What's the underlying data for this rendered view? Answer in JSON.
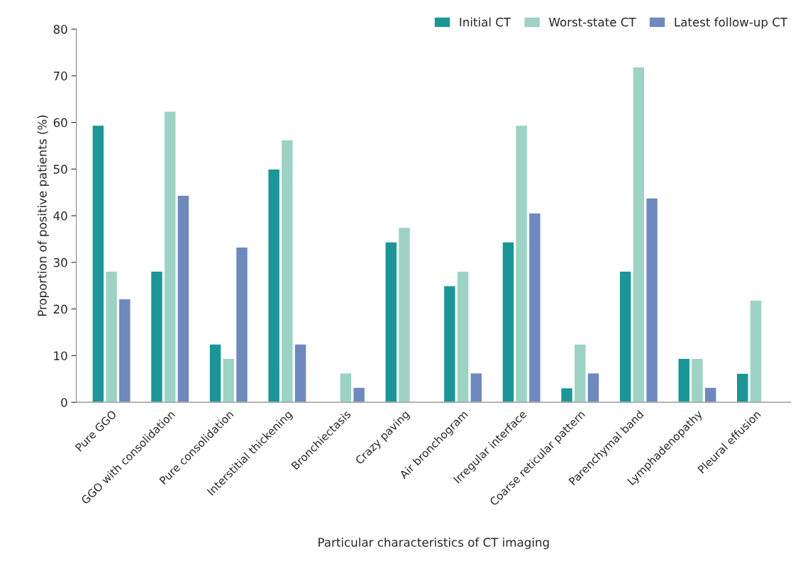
{
  "chart_data": {
    "type": "bar",
    "xlabel": "Particular characteristics of CT imaging",
    "ylabel": "Proportion of positive patients (%)",
    "categories": [
      "Pure GGO",
      "GGO with consolidation",
      "Pure consolidation",
      "Interstitial thickening",
      "Bronchiectasis",
      "Crazy paving",
      "Air bronchogram",
      "Irregular interface",
      "Coarse reticular pattern",
      "Parenchymal band",
      "Lymphadenopathy",
      "Pleural effusion"
    ],
    "series": [
      {
        "name": "Initial CT",
        "color": "#1a9699",
        "values": [
          59.4,
          28.1,
          12.5,
          50.0,
          null,
          34.4,
          25.0,
          34.4,
          3.1,
          28.1,
          9.4,
          6.2
        ]
      },
      {
        "name": "Worst-state CT",
        "color": "#9dd3c4",
        "values": [
          28.1,
          62.4,
          9.4,
          56.3,
          6.3,
          37.5,
          28.1,
          59.4,
          12.5,
          71.9,
          9.4,
          21.9
        ]
      },
      {
        "name": "Latest follow-up CT",
        "color": "#6d89c0",
        "values": [
          22.2,
          44.4,
          33.3,
          12.5,
          3.2,
          null,
          6.3,
          40.6,
          6.3,
          43.8,
          3.2,
          null
        ]
      }
    ],
    "ylim": [
      0,
      80
    ],
    "yticks": [
      0,
      10,
      20,
      30,
      40,
      50,
      60,
      70,
      80
    ],
    "grid": false,
    "legend": "top right"
  }
}
